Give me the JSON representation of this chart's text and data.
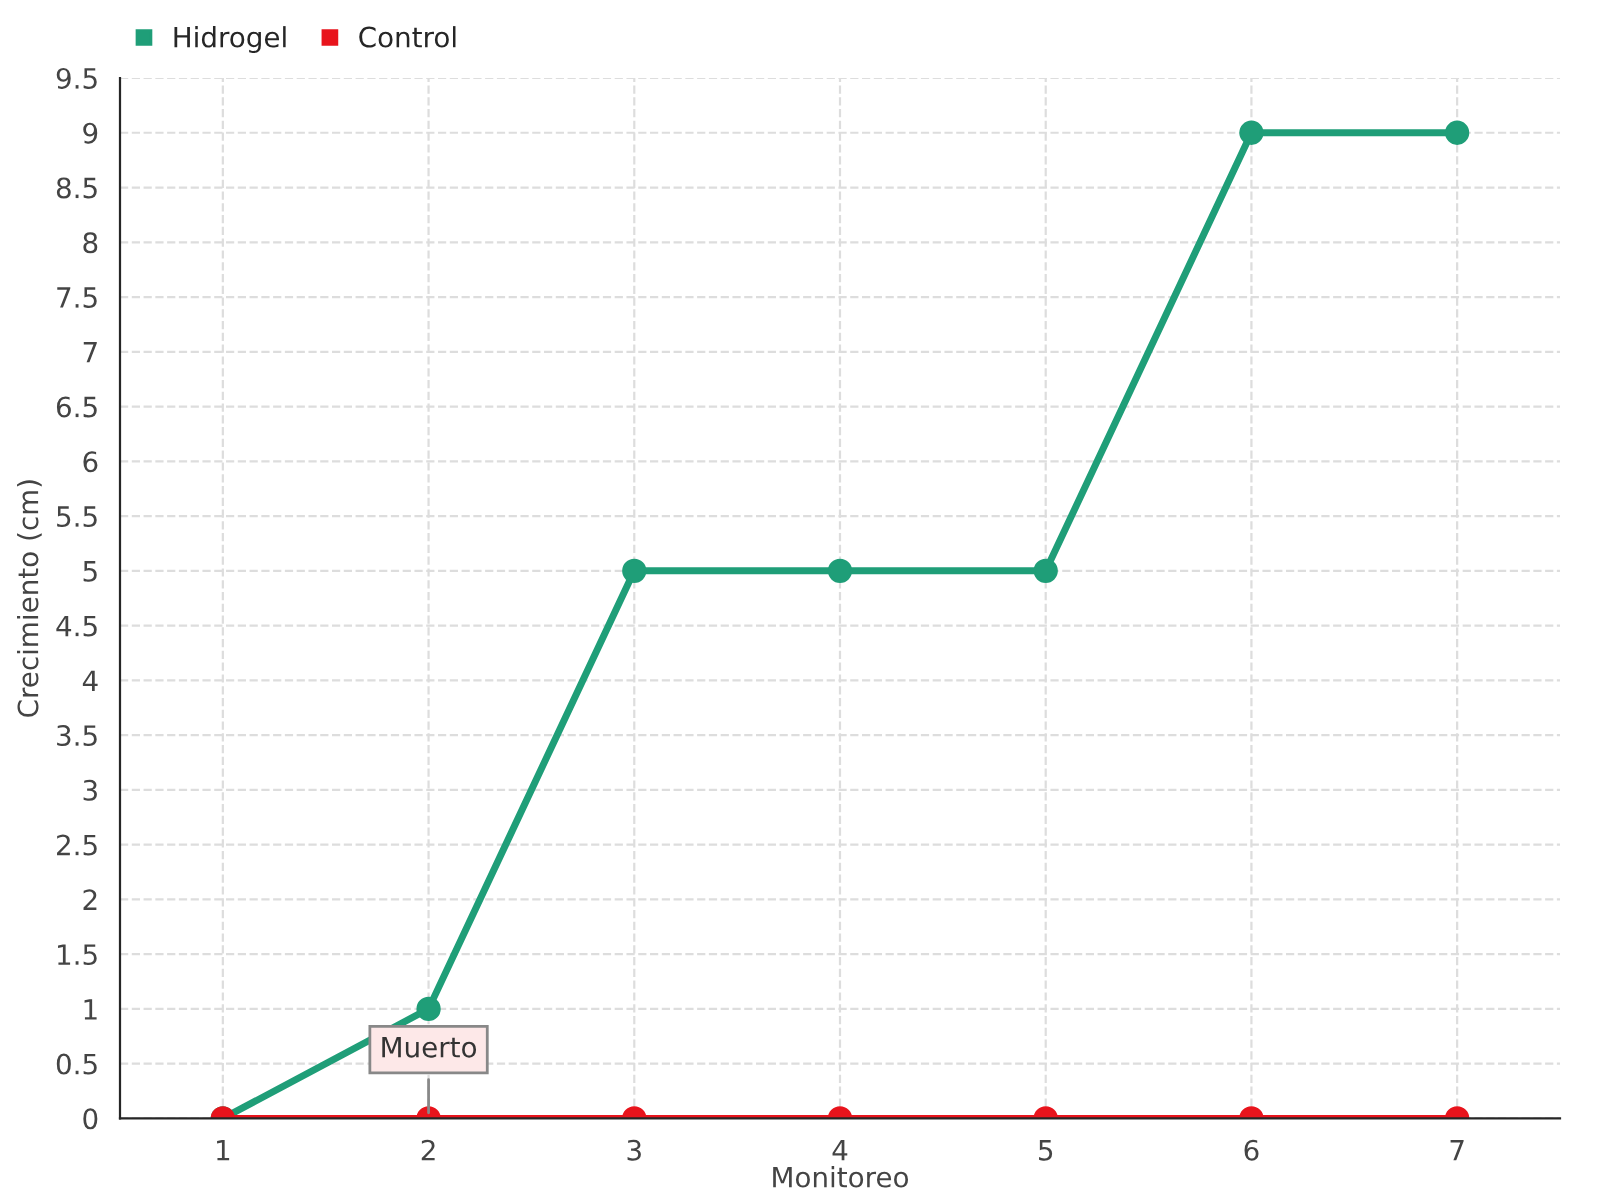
{
  "chart_data": {
    "type": "line",
    "xlabel": "Monitoreo",
    "ylabel": "Crecimiento (cm)",
    "x": [
      1,
      2,
      3,
      4,
      5,
      6,
      7
    ],
    "series": [
      {
        "name": "Hidrogel",
        "color": "#1f9e78",
        "values": [
          0,
          1,
          5,
          5,
          5,
          9,
          9
        ]
      },
      {
        "name": "Control",
        "color": "#e8141c",
        "values": [
          0,
          0,
          0,
          0,
          0,
          0,
          0
        ]
      }
    ],
    "annotations": [
      {
        "text": "Muerto",
        "x": 2,
        "y": 0
      }
    ],
    "xlim": [
      0.5,
      7.5
    ],
    "xticks": [
      1,
      2,
      3,
      4,
      5,
      6,
      7
    ],
    "ylim": [
      0,
      9.5
    ],
    "yticks": [
      0,
      0.5,
      1,
      1.5,
      2,
      2.5,
      3,
      3.5,
      4,
      4.5,
      5,
      5.5,
      6,
      6.5,
      7,
      7.5,
      8,
      8.5,
      9,
      9.5
    ],
    "grid": true,
    "legend": "top left",
    "marker": "circle",
    "line_style": "solid"
  }
}
